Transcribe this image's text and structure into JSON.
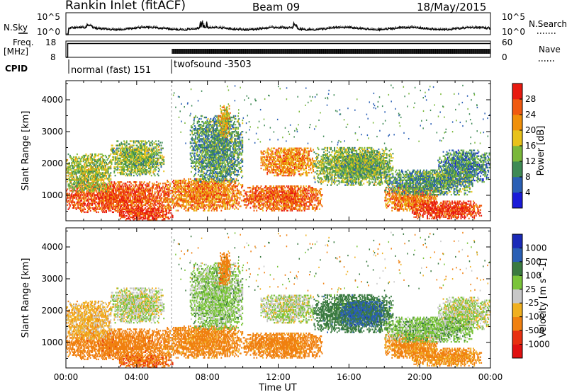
{
  "header": {
    "station": "Rankin Inlet (fitACF)",
    "beam": "Beam 09",
    "date": "18/May/2015"
  },
  "noise_panel": {
    "left_label": "N.Sky",
    "right_label": "N.Search",
    "left_ticks": [
      "10^5",
      "10^0"
    ],
    "right_ticks": [
      "10^5",
      "10^0"
    ]
  },
  "freq_panel": {
    "left_label_1": "Freq.",
    "left_label_2": "[MHz]",
    "left_ticks": [
      "18",
      "8"
    ],
    "right_label": "Nave",
    "right_ticks": [
      "60",
      "0"
    ]
  },
  "cpid": {
    "label": "CPID",
    "segments": [
      {
        "start_h": 0,
        "end_h": 6,
        "name": "normal (fast) 151"
      },
      {
        "start_h": 6,
        "end_h": 24,
        "name": "twofsound -3503"
      }
    ]
  },
  "power_panel": {
    "ylabel": "Slant Range [km]",
    "yticks": [
      "1000",
      "2000",
      "3000",
      "4000"
    ],
    "colorbar_title": "Power [dB]",
    "colorbar_ticks": [
      "4",
      "8",
      "12",
      "16",
      "20",
      "24",
      "28"
    ],
    "colors": [
      "#1a1ad8",
      "#2a5fb5",
      "#3e8a55",
      "#7ab83a",
      "#e8c21a",
      "#f0900a",
      "#f05a10",
      "#e81a10"
    ]
  },
  "velocity_panel": {
    "ylabel": "Slant Range [km]",
    "yticks": [
      "1000",
      "2000",
      "3000",
      "4000"
    ],
    "colorbar_title": "Velocity [m s^-1]",
    "colorbar_ticks": [
      "1000",
      "500",
      "100",
      "25",
      "-25",
      "-100",
      "-500",
      "-1000"
    ],
    "colors": [
      "#1a2ab8",
      "#2a5fb5",
      "#3a7a40",
      "#7ac43a",
      "#c8c8c8",
      "#f0b020",
      "#f08010",
      "#e83010",
      "#e01010"
    ]
  },
  "x_axis": {
    "ticks": [
      "00:00",
      "04:00",
      "08:00",
      "12:00",
      "16:00",
      "20:00",
      "00:00"
    ],
    "label": "Time UT"
  },
  "chart_data": {
    "type": "heatmap",
    "x": {
      "unit": "hours UT",
      "range": [
        0,
        24
      ]
    },
    "y": {
      "unit": "km",
      "range": [
        200,
        4600
      ]
    },
    "power_db_range": [
      0,
      30
    ],
    "velocity_range": [
      -1000,
      1000
    ],
    "noise_log_range": [
      0,
      5
    ],
    "freq_range_mhz": [
      8,
      18
    ],
    "nave_range": [
      0,
      60
    ],
    "echo_regions": [
      {
        "t0": 0.0,
        "t1": 5.8,
        "r0": 450,
        "r1": 1400,
        "power": 25,
        "vel": -300
      },
      {
        "t0": 0.0,
        "t1": 2.5,
        "r0": 1100,
        "r1": 2300,
        "power": 14,
        "vel": -60
      },
      {
        "t0": 2.5,
        "t1": 5.5,
        "r0": 1600,
        "r1": 2700,
        "power": 13,
        "vel": 10
      },
      {
        "t0": 3.0,
        "t1": 6.0,
        "r0": 200,
        "r1": 600,
        "power": 27,
        "vel": -400
      },
      {
        "t0": 5.5,
        "t1": 10.0,
        "r0": 500,
        "r1": 1500,
        "power": 22,
        "vel": -200
      },
      {
        "t0": 7.0,
        "t1": 10.0,
        "r0": 1400,
        "r1": 3500,
        "power": 10,
        "vel": 50
      },
      {
        "t0": 8.6,
        "t1": 9.3,
        "r0": 2800,
        "r1": 3800,
        "power": 18,
        "vel": -300
      },
      {
        "t0": 10.0,
        "t1": 14.5,
        "r0": 500,
        "r1": 1300,
        "power": 24,
        "vel": -250
      },
      {
        "t0": 11.0,
        "t1": 14.0,
        "r0": 1600,
        "r1": 2500,
        "power": 21,
        "vel": 15
      },
      {
        "t0": 14.0,
        "t1": 18.5,
        "r0": 1300,
        "r1": 2500,
        "power": 13,
        "vel": 300
      },
      {
        "t0": 15.5,
        "t1": 18.0,
        "r0": 1500,
        "r1": 2300,
        "power": 12,
        "vel": 600
      },
      {
        "t0": 18.0,
        "t1": 21.0,
        "r0": 500,
        "r1": 1300,
        "power": 22,
        "vel": -150
      },
      {
        "t0": 19.5,
        "t1": 23.5,
        "r0": 250,
        "r1": 800,
        "power": 27,
        "vel": -150
      },
      {
        "t0": 21.0,
        "t1": 24.0,
        "r0": 1400,
        "r1": 2400,
        "power": 9,
        "vel": 10
      },
      {
        "t0": 18.0,
        "t1": 23.0,
        "r0": 1000,
        "r1": 1800,
        "power": 10,
        "vel": 60
      }
    ]
  }
}
